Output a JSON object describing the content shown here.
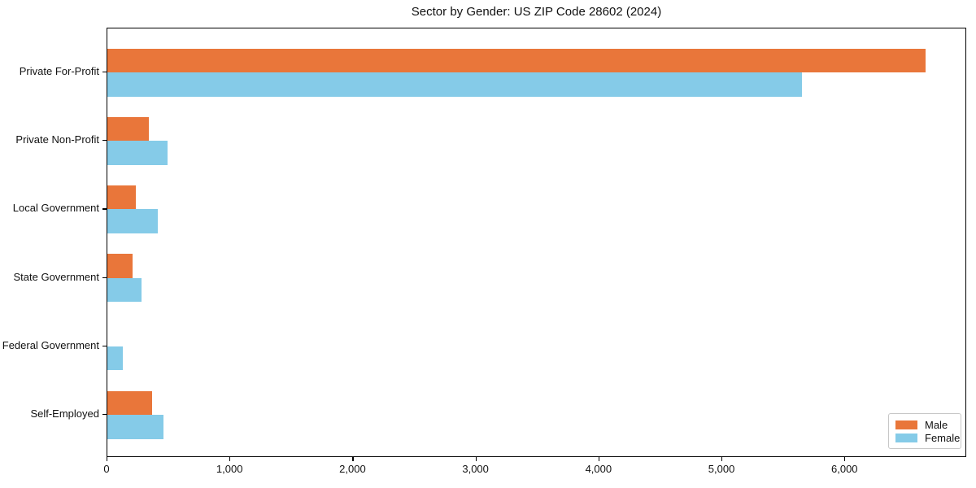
{
  "figure": {
    "background": "#ffffff"
  },
  "chart_data": {
    "type": "bar",
    "orientation": "horizontal",
    "title": "Sector by Gender: US ZIP Code 28602 (2024)",
    "categories": [
      "Private For-Profit",
      "Private Non-Profit",
      "Local Government",
      "State Government",
      "Federal Government",
      "Self-Employed"
    ],
    "series": [
      {
        "name": "Male",
        "color": "#e9763a",
        "values": [
          6650,
          340,
          230,
          205,
          0,
          365
        ]
      },
      {
        "name": "Female",
        "color": "#85cbe8",
        "values": [
          5650,
          490,
          410,
          280,
          125,
          455
        ]
      }
    ],
    "xlabel": "",
    "ylabel": "",
    "xlim": [
      0,
      6990
    ],
    "xticks": [
      0,
      1000,
      2000,
      3000,
      4000,
      5000,
      6000
    ],
    "xtick_labels": [
      "0",
      "1,000",
      "2,000",
      "3,000",
      "4,000",
      "5,000",
      "6,000"
    ],
    "grid": false,
    "legend": {
      "location": "lower right",
      "entries": [
        "Male",
        "Female"
      ]
    },
    "axis_color": "#000000"
  }
}
